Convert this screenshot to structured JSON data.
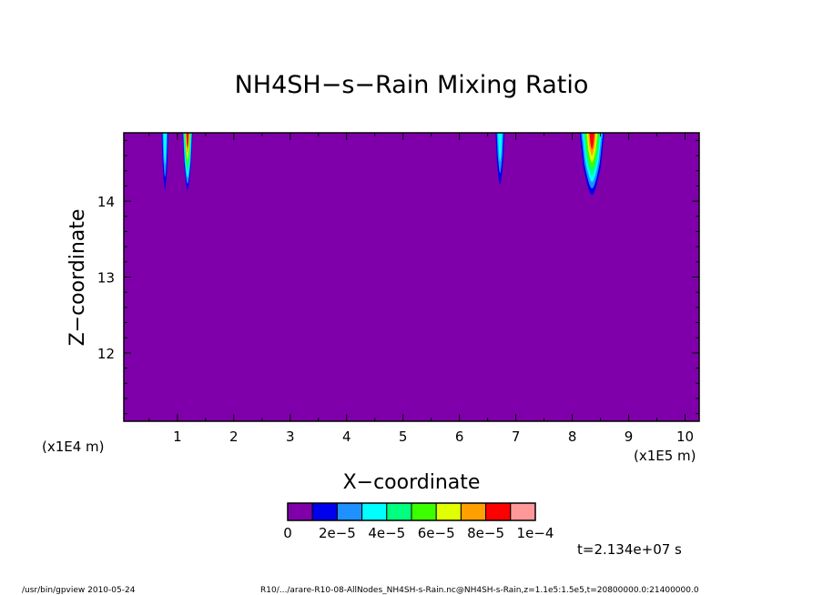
{
  "chart_data": {
    "type": "heatmap",
    "title": "NH4SH−s−Rain Mixing Ratio",
    "xlabel": "X−coordinate",
    "ylabel": "Z−coordinate",
    "x_unit_left": "(x1E4 m)",
    "x_unit_right": "(x1E5 m)",
    "x_ticks": [
      "1",
      "2",
      "3",
      "4",
      "5",
      "6",
      "7",
      "8",
      "9",
      "10"
    ],
    "y_ticks": [
      "12",
      "13",
      "14"
    ],
    "xlim": [
      0.05,
      10.25
    ],
    "ylim": [
      11.1,
      14.9
    ],
    "background_color": "#7f00aa",
    "colorbar": {
      "colors": [
        "#7f00aa",
        "#0000ee",
        "#1e90ff",
        "#00ffff",
        "#00ff7f",
        "#3cff00",
        "#e0ff00",
        "#ffa000",
        "#ff0000",
        "#ff9999"
      ],
      "labels": [
        "0",
        "2e−5",
        "4e−5",
        "6e−5",
        "8e−5",
        "1e−4"
      ]
    },
    "time_label": "t=2.134e+07 s",
    "plumes": [
      {
        "x": 0.78,
        "half_width": 0.06,
        "z_bottom": 14.15,
        "peak_level": 3
      },
      {
        "x": 1.18,
        "half_width": 0.09,
        "z_bottom": 14.15,
        "peak_level": 8
      },
      {
        "x": 6.72,
        "half_width": 0.08,
        "z_bottom": 14.22,
        "peak_level": 3
      },
      {
        "x": 8.35,
        "half_width": 0.22,
        "z_bottom": 14.08,
        "peak_level": 8
      }
    ]
  },
  "footer": {
    "left": "/usr/bin/gpview   2010-05-24",
    "right": "R10/.../arare-R10-08-AllNodes_NH4SH-s-Rain.nc@NH4SH-s-Rain,z=1.1e5:1.5e5,t=20800000.0:21400000.0"
  }
}
